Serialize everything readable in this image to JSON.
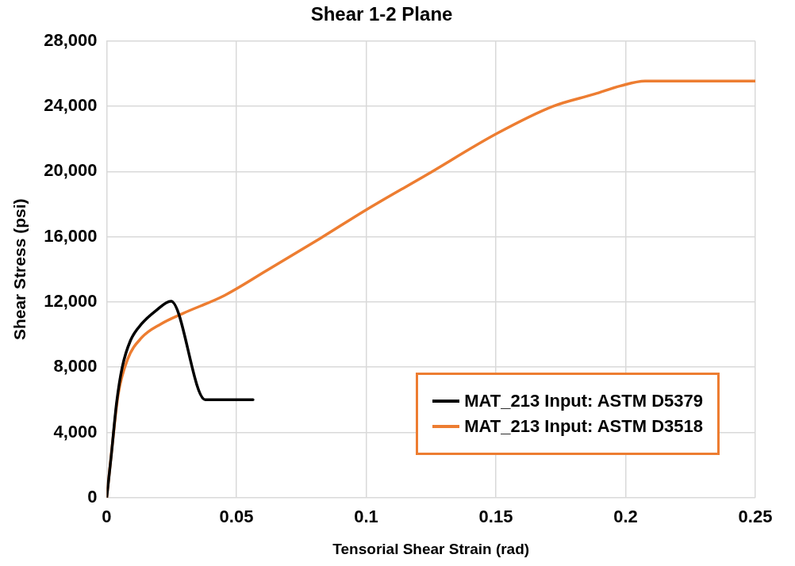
{
  "chart_data": {
    "type": "line",
    "title": "Shear 1-2 Plane",
    "xlabel": "Tensorial Shear Strain (rad)",
    "ylabel": "Shear Stress (psi)",
    "xlim": [
      0,
      0.25
    ],
    "xticks": [
      0,
      0.05,
      0.1,
      0.15,
      0.2,
      0.25
    ],
    "ylim": [
      0,
      28000
    ],
    "yticks": [
      0,
      {
        "value": 4000,
        "label": "4,000"
      },
      {
        "value": 8000,
        "label": "8,000"
      },
      {
        "value": 12000,
        "label": "12,000"
      },
      {
        "value": 16000,
        "label": "16,000"
      },
      {
        "value": 20000,
        "label": "20,000"
      },
      {
        "value": 24000,
        "label": "24,000"
      },
      {
        "value": 28000,
        "label": "28,000"
      }
    ],
    "grid": true,
    "legend": "bottom right",
    "marker": "none",
    "line_style": "solid",
    "series": [
      {
        "name": "MAT_213 Input: ASTM D5379",
        "color": "#000000",
        "x": [
          0,
          0.0017,
          0.0038,
          0.006,
          0.0092,
          0.0134,
          0.0188,
          0.0248,
          0.038,
          0.0564
        ],
        "values": [
          0,
          2500,
          5800,
          8000,
          9650,
          10650,
          11450,
          12050,
          6000,
          6000
        ]
      },
      {
        "name": "MAT_213 Input: ASTM D3518",
        "color": "#ed7d31",
        "x": [
          0,
          0.0022,
          0.0044,
          0.0081,
          0.0134,
          0.0209,
          0.0294,
          0.0454,
          0.0614,
          0.0823,
          0.1,
          0.1228,
          0.1506,
          0.172,
          0.188,
          0.198,
          0.2075,
          0.25
        ],
        "values": [
          0,
          3300,
          6300,
          8500,
          9800,
          10650,
          11300,
          12400,
          13900,
          15900,
          17650,
          19750,
          22350,
          24000,
          24750,
          25250,
          25550,
          25550
        ]
      }
    ]
  }
}
